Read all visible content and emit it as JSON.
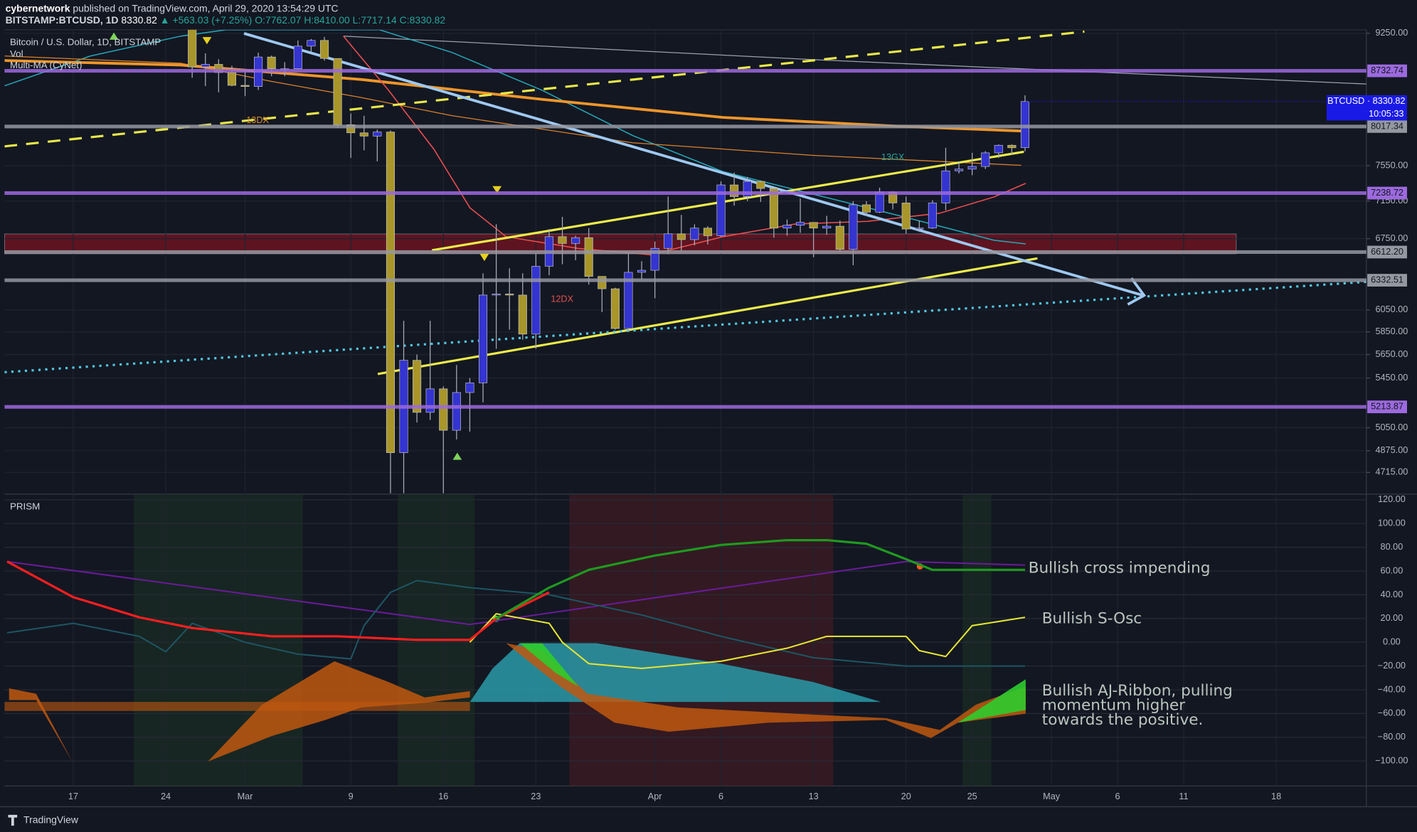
{
  "header": {
    "author": "cybernetwork",
    "published": "published on TradingView.com, April 29, 2020 13:54:29 UTC",
    "symbol": "BITSTAMP:BTCUSD, 1D",
    "last": "8330.82",
    "change": "▲ +563.03 (+7.25%)",
    "ohlc": "O:7762.07 H:8410.00 L:7717.14 C:8330.82"
  },
  "footer": "TradingView",
  "chart_data": [
    {
      "type": "candlestick",
      "title": "Bitcoin / U.S. Dollar, 1D, BITSTAMP",
      "indicators": [
        "Vol",
        "Multi-MA (CyNet)"
      ],
      "annotations": [
        "13GX",
        "12DX",
        "13DX"
      ],
      "log_scale": true,
      "grid": true,
      "up_color": "#3434d0",
      "down_color": "#a8962a",
      "xlim": [
        "Feb 12",
        "May 24"
      ],
      "xticks": [
        {
          "value": "Feb 17",
          "label": "17"
        },
        {
          "value": "Feb 24",
          "label": "24"
        },
        {
          "value": "Mar 1",
          "label": "Mar"
        },
        {
          "value": "Mar 9",
          "label": "9"
        },
        {
          "value": "Mar 16",
          "label": "16"
        },
        {
          "value": "Mar 23",
          "label": "23"
        },
        {
          "value": "Apr 1",
          "label": "Apr"
        },
        {
          "value": "Apr 6",
          "label": "6"
        },
        {
          "value": "Apr 13",
          "label": "13"
        },
        {
          "value": "Apr 20",
          "label": "20"
        },
        {
          "value": "Apr 25",
          "label": "25"
        },
        {
          "value": "May 1",
          "label": "May"
        },
        {
          "value": "May 6",
          "label": "6"
        },
        {
          "value": "May 11",
          "label": "11"
        },
        {
          "value": "May 18",
          "label": "18"
        }
      ],
      "ylim": [
        4573,
        9300
      ],
      "yticks": [
        {
          "value": 9250,
          "label": "9250.00"
        },
        {
          "value": 7550,
          "label": "7550.00"
        },
        {
          "value": 7150,
          "label": "7150.00"
        },
        {
          "value": 6750,
          "label": "6750.00"
        },
        {
          "value": 6050,
          "label": "6050.00"
        },
        {
          "value": 5850,
          "label": "5850.00"
        },
        {
          "value": 5650,
          "label": "5650.00"
        },
        {
          "value": 5450,
          "label": "5450.00"
        },
        {
          "value": 5050,
          "label": "5050.00"
        },
        {
          "value": 4875,
          "label": "4875.00"
        },
        {
          "value": 4715,
          "label": "4715.00"
        }
      ],
      "x": [
        "Feb 26",
        "Feb 27",
        "Feb 28",
        "Feb 29",
        "Mar 1",
        "Mar 2",
        "Mar 3",
        "Mar 4",
        "Mar 5",
        "Mar 6",
        "Mar 7",
        "Mar 8",
        "Mar 9",
        "Mar 10",
        "Mar 11",
        "Mar 12",
        "Mar 13",
        "Mar 14",
        "Mar 15",
        "Mar 16",
        "Mar 17",
        "Mar 18",
        "Mar 19",
        "Mar 20",
        "Mar 21",
        "Mar 22",
        "Mar 23",
        "Mar 24",
        "Mar 25",
        "Mar 26",
        "Mar 27",
        "Mar 28",
        "Mar 29",
        "Mar 30",
        "Mar 31",
        "Apr 1",
        "Apr 2",
        "Apr 3",
        "Apr 4",
        "Apr 5",
        "Apr 6",
        "Apr 7",
        "Apr 8",
        "Apr 9",
        "Apr 10",
        "Apr 11",
        "Apr 12",
        "Apr 13",
        "Apr 14",
        "Apr 15",
        "Apr 16",
        "Apr 17",
        "Apr 18",
        "Apr 19",
        "Apr 20",
        "Apr 21",
        "Apr 22",
        "Apr 23",
        "Apr 24",
        "Apr 25",
        "Apr 26",
        "Apr 27",
        "Apr 28",
        "Apr 29"
      ],
      "open": [
        9315,
        8785,
        8820,
        8710,
        8540,
        8525,
        8920,
        8760,
        8760,
        9070,
        9150,
        8900,
        8040,
        7940,
        7900,
        7950,
        4860,
        5600,
        5170,
        5360,
        5030,
        5330,
        5410,
        6190,
        6200,
        6190,
        5830,
        6470,
        6770,
        6700,
        6760,
        6370,
        6250,
        5880,
        6410,
        6430,
        6650,
        6800,
        6740,
        6860,
        6780,
        7330,
        7200,
        7370,
        7290,
        6860,
        6890,
        6920,
        6860,
        6880,
        6640,
        7110,
        7030,
        7250,
        7130,
        6850,
        6860,
        7130,
        7490,
        7510,
        7540,
        7700,
        7790,
        7762.07
      ],
      "high": [
        9380,
        8970,
        8890,
        8800,
        8750,
        8980,
        8940,
        8850,
        9150,
        9170,
        9200,
        8900,
        8180,
        8150,
        7980,
        7970,
        5950,
        5650,
        5950,
        5380,
        5560,
        5450,
        6400,
        6900,
        6450,
        6400,
        6600,
        6850,
        6980,
        6780,
        6860,
        6370,
        6260,
        6600,
        6520,
        6720,
        7200,
        7000,
        6900,
        6880,
        7370,
        7470,
        7420,
        7380,
        7300,
        6950,
        7180,
        6920,
        6990,
        6940,
        7150,
        7150,
        7300,
        7260,
        7200,
        6940,
        7160,
        7760,
        7600,
        7700,
        7720,
        7800,
        7800,
        8410
      ],
      "low": [
        8640,
        8530,
        8450,
        8530,
        8400,
        8480,
        8660,
        8660,
        8750,
        8990,
        8870,
        8000,
        7640,
        7730,
        7600,
        4440,
        3850,
        5090,
        5110,
        4440,
        4960,
        5020,
        5250,
        5700,
        5870,
        5780,
        5700,
        6380,
        6490,
        6530,
        6290,
        6030,
        5870,
        5860,
        6340,
        6160,
        6590,
        6620,
        6680,
        6690,
        6770,
        7100,
        7150,
        7140,
        6760,
        6780,
        6810,
        6560,
        6790,
        6620,
        6480,
        6990,
        7020,
        7060,
        6800,
        6820,
        6850,
        7050,
        7460,
        7440,
        7510,
        7640,
        7680,
        7717.14
      ],
      "close": [
        8785,
        8820,
        8710,
        8540,
        8525,
        8920,
        8760,
        8760,
        9070,
        9150,
        8900,
        8040,
        7940,
        7900,
        7950,
        4860,
        5600,
        5170,
        5360,
        5030,
        5330,
        5410,
        6190,
        6200,
        6190,
        5830,
        6470,
        6770,
        6700,
        6760,
        6370,
        6250,
        5880,
        6410,
        6430,
        6650,
        6800,
        6740,
        6860,
        6780,
        7330,
        7200,
        7370,
        7290,
        6860,
        6890,
        6920,
        6860,
        6880,
        6640,
        7110,
        7030,
        7250,
        7130,
        6850,
        6860,
        7130,
        7490,
        7510,
        7540,
        7700,
        7790,
        7760,
        8330.82
      ],
      "levels": [
        {
          "price": 8732.74,
          "color": "#9c6ade"
        },
        {
          "price": 8017.34,
          "color": "#9598a1"
        },
        {
          "price": 7238.72,
          "color": "#9c6ade"
        },
        {
          "price": {
            "value": 6612.2,
            "label": "6612.20"
          },
          "color": "#9598a1"
        },
        {
          "price": 6332.51,
          "color": "#9598a1"
        },
        {
          "price": 5213.87,
          "color": "#9c6ade"
        }
      ],
      "last": {
        "price": 8330.82,
        "label": "BTCUSD · 8330.82",
        "countdown": "10:05:33",
        "color": "#1a1ae6"
      }
    },
    {
      "type": "line",
      "title": "PRISM",
      "ylim": [
        -121,
        124
      ],
      "yticks": [
        {
          "value": 120,
          "label": "120.00"
        },
        {
          "value": 100,
          "label": "100.00"
        },
        {
          "value": 80,
          "label": "80.00"
        },
        {
          "value": 60,
          "label": "60.00"
        },
        {
          "value": 40,
          "label": "40.00"
        },
        {
          "value": 20,
          "label": "20.00"
        },
        {
          "value": 0,
          "label": "0.00"
        },
        {
          "value": -20,
          "label": "−20.00"
        },
        {
          "value": -40,
          "label": "−40.00"
        },
        {
          "value": -60,
          "label": "−60.00"
        },
        {
          "value": -80,
          "label": "−80.00"
        },
        {
          "value": -100,
          "label": "−100.00"
        }
      ],
      "series": [
        {
          "color": "#6a1b9a",
          "x": [
            "Feb 12",
            "Mar 18",
            "Apr 20",
            "Apr 29"
          ],
          "values": [
            68,
            15,
            68,
            65
          ]
        },
        {
          "color": "#1e5563",
          "x": [
            "Feb 12",
            "Feb 17",
            "Feb 22",
            "Feb 24",
            "Feb 26",
            "Mar 1",
            "Mar 5",
            "Mar 9",
            "Mar 10",
            "Mar 12",
            "Mar 14",
            "Mar 18",
            "Mar 24",
            "Mar 31",
            "Apr 6",
            "Apr 13",
            "Apr 20",
            "Apr 29"
          ],
          "values": [
            8,
            16,
            5,
            -8,
            16,
            0,
            -10,
            -14,
            14,
            42,
            52,
            46,
            40,
            23,
            5,
            -13,
            -20,
            -20
          ]
        },
        {
          "color": "#e6e633",
          "x": [
            "Mar 18",
            "Mar 20",
            "Mar 24",
            "Mar 25",
            "Mar 27",
            "Mar 31",
            "Apr 6",
            "Apr 11",
            "Apr 14",
            "Apr 20",
            "Apr 21",
            "Apr 23",
            "Apr 25",
            "Apr 29"
          ],
          "values": [
            0,
            24,
            16,
            0,
            -18,
            -22,
            -16,
            -5,
            5,
            5,
            -7,
            -12,
            14,
            21
          ]
        },
        {
          "color": "#ff1f1f",
          "x": [
            "Feb 12",
            "Feb 17",
            "Feb 22",
            "Feb 26",
            "Mar 3",
            "Mar 8",
            "Mar 14",
            "Mar 18",
            "Mar 20",
            "Mar 24"
          ],
          "values": [
            68,
            38,
            21,
            12,
            5,
            5,
            2,
            2,
            20,
            42
          ]
        },
        {
          "color": "#1f9a1f",
          "x": [
            "Mar 20",
            "Mar 24",
            "Mar 27",
            "Apr 1",
            "Apr 6",
            "Apr 11",
            "Apr 14",
            "Apr 17",
            "Apr 20",
            "Apr 22",
            "Apr 29"
          ],
          "values": [
            20,
            46,
            61,
            73,
            82,
            86,
            86,
            83,
            70,
            61,
            61
          ]
        }
      ],
      "annotations": [
        "Bullish cross impending",
        "Bullish S-Osc",
        "Bullish AJ-Ribbon, pulling",
        "momentum higher",
        "towards the positive."
      ]
    }
  ]
}
